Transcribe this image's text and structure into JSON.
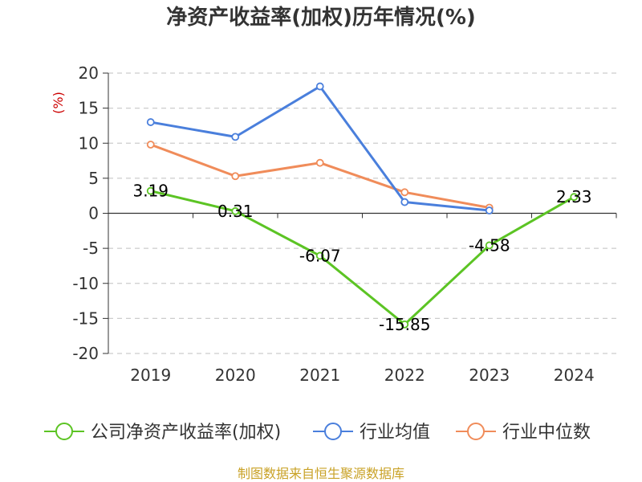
{
  "chart_data": {
    "type": "line",
    "title": "净资产收益率(加权)历年情况(%)",
    "ylabel": "(%)",
    "xlabel": "",
    "ylim": [
      -20,
      20
    ],
    "yticks": [
      20,
      15,
      10,
      5,
      0,
      -5,
      -10,
      -15,
      -20
    ],
    "ytick_labels": [
      "20",
      "15",
      "10",
      "5",
      "0",
      "-5",
      "-10",
      "-15",
      "-20"
    ],
    "categories": [
      "2019",
      "2020",
      "2021",
      "2022",
      "2023",
      "2024"
    ],
    "grid": true,
    "legend_position": "bottom",
    "series": [
      {
        "name": "公司净资产收益率(加权)",
        "color": "#5cc424",
        "values": [
          3.19,
          0.31,
          -6.07,
          -15.85,
          -4.58,
          2.33
        ],
        "labels": [
          "3.19",
          "0.31",
          "-6.07",
          "-15.85",
          "-4.58",
          "2.33"
        ]
      },
      {
        "name": "行业均值",
        "color": "#4a7fdc",
        "values": [
          13.0,
          10.9,
          18.1,
          1.6,
          0.4,
          null
        ]
      },
      {
        "name": "行业中位数",
        "color": "#f08c5a",
        "values": [
          9.8,
          5.3,
          7.2,
          3.0,
          0.8,
          null
        ]
      }
    ]
  },
  "footer": {
    "source": "制图数据来自恒生聚源数据库"
  }
}
